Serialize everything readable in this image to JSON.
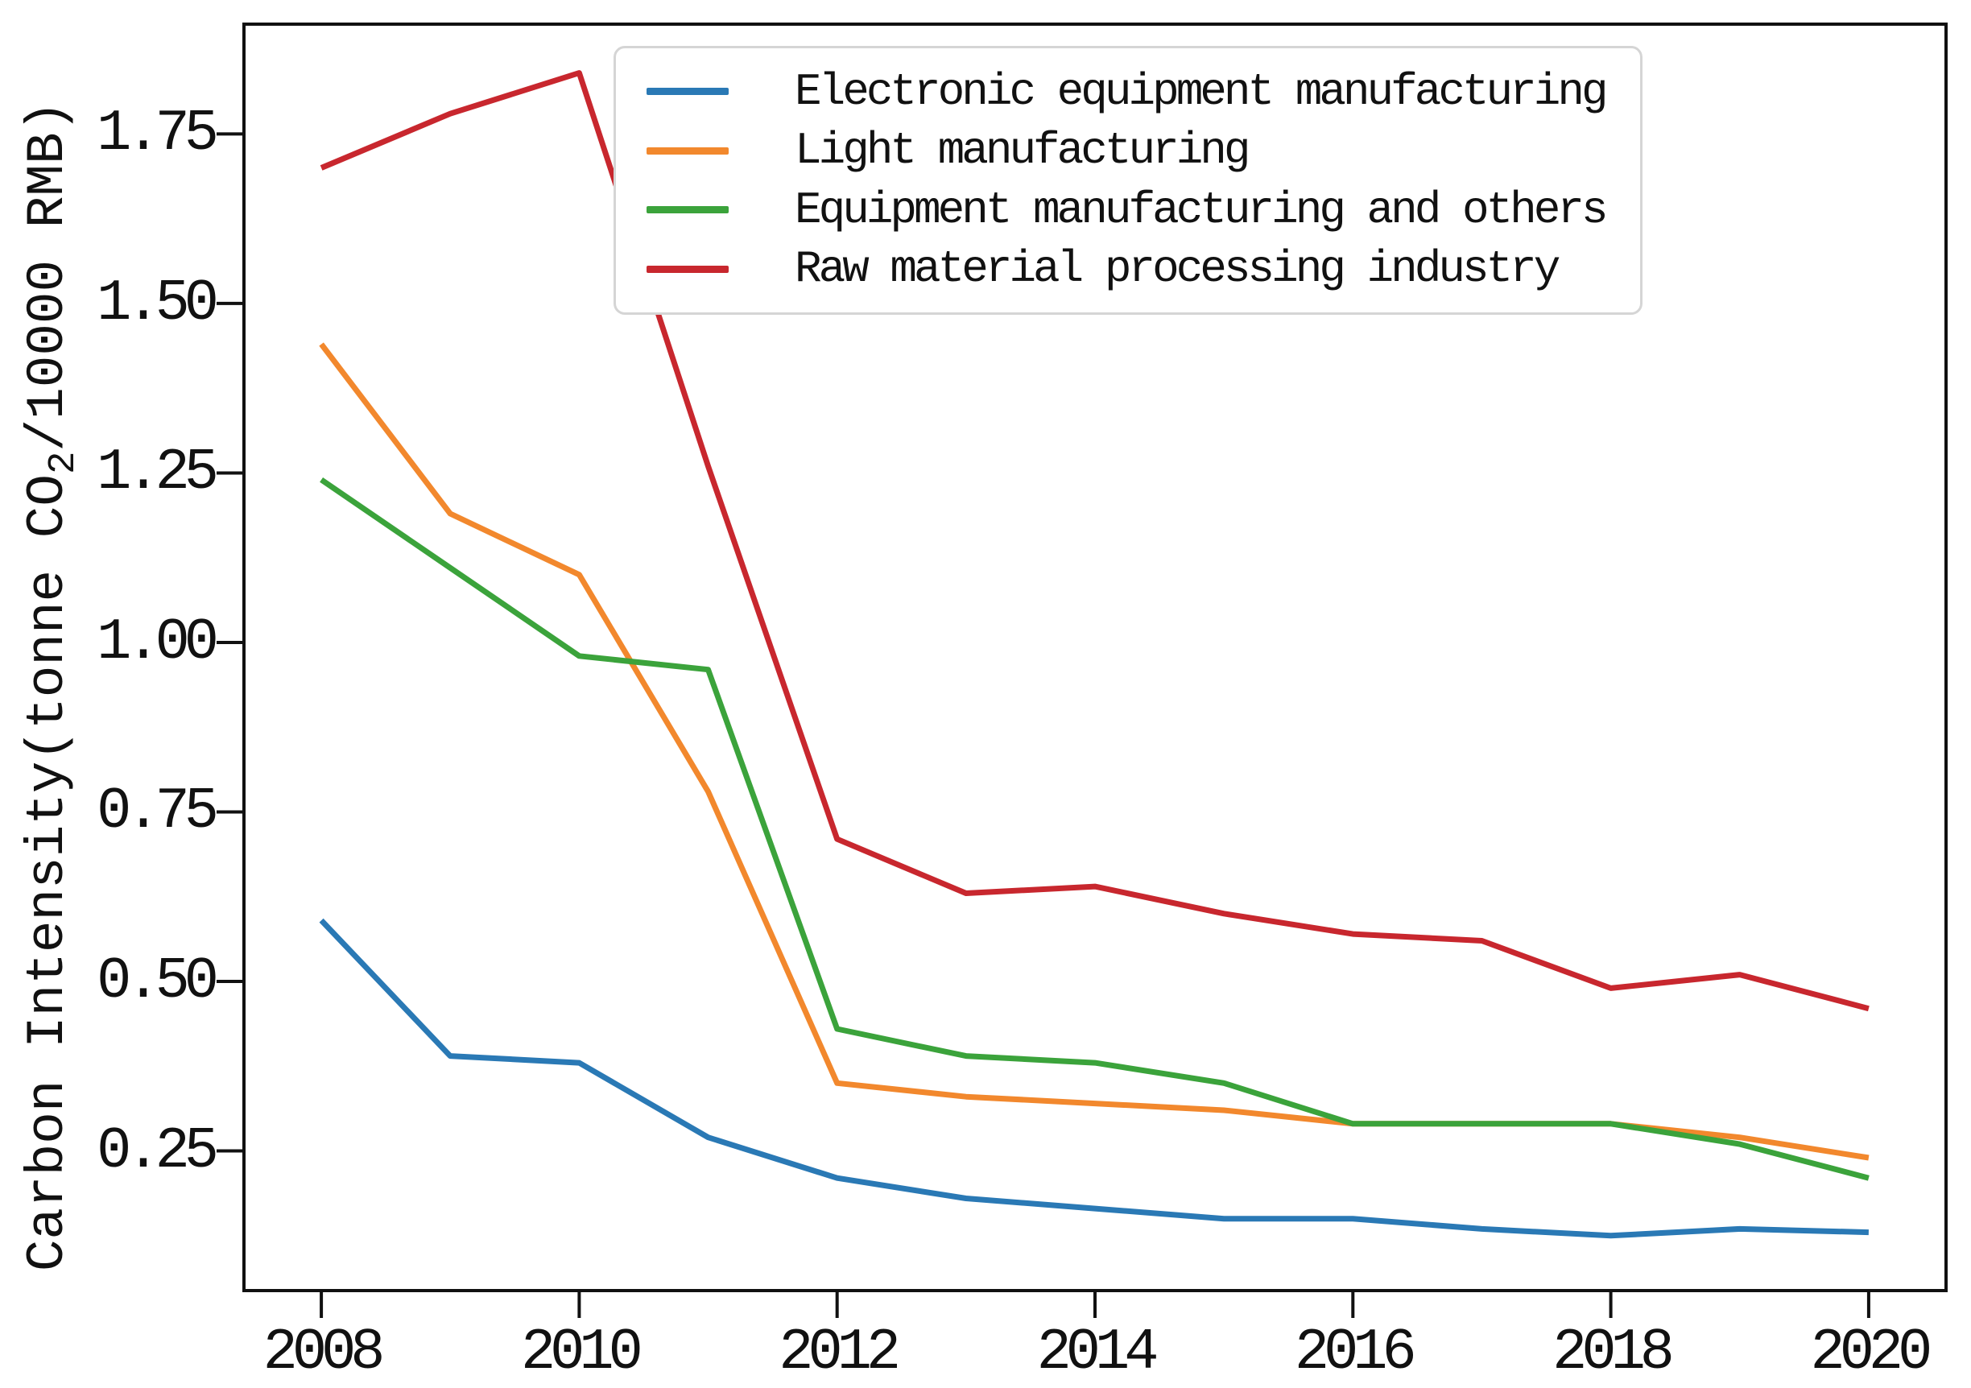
{
  "chart_data": {
    "type": "line",
    "title": "",
    "xlabel": "",
    "ylabel": "Carbon Intensity(tonne CO₂/10000 RMB)",
    "ylabel_parts": {
      "prefix": "Carbon Intensity(tonne CO",
      "subscript": "2",
      "suffix": "/10000 RMB)"
    },
    "x": [
      2008,
      2009,
      2010,
      2011,
      2012,
      2013,
      2014,
      2015,
      2016,
      2017,
      2018,
      2019,
      2020
    ],
    "x_tick_labels": [
      "2008",
      "2010",
      "2012",
      "2014",
      "2016",
      "2018",
      "2020"
    ],
    "y_tick_labels": [
      "0.25",
      "0.50",
      "0.75",
      "1.00",
      "1.25",
      "1.50",
      "1.75"
    ],
    "xlim": [
      2007.4,
      2020.6
    ],
    "ylim": [
      0.044,
      1.912
    ],
    "grid": false,
    "legend_position": "upper right",
    "axis_color": "#111111",
    "line_width": 7,
    "series": [
      {
        "name": "Electronic equipment manufacturing",
        "color": "#2a79b5",
        "values": [
          0.59,
          0.39,
          0.38,
          0.27,
          0.21,
          0.18,
          0.165,
          0.15,
          0.15,
          0.135,
          0.125,
          0.135,
          0.13
        ]
      },
      {
        "name": "Light manufacturing",
        "color": "#f2882d",
        "values": [
          1.44,
          1.19,
          1.1,
          0.78,
          0.35,
          0.33,
          0.32,
          0.31,
          0.29,
          0.29,
          0.29,
          0.27,
          0.24
        ]
      },
      {
        "name": "Equipment manufacturing and others",
        "color": "#3ba33b",
        "values": [
          1.24,
          1.11,
          0.98,
          0.96,
          0.43,
          0.39,
          0.38,
          0.35,
          0.29,
          0.29,
          0.29,
          0.26,
          0.21
        ]
      },
      {
        "name": "Raw material processing industry",
        "color": "#c8272e",
        "values": [
          1.7,
          1.78,
          1.84,
          1.26,
          0.71,
          0.63,
          0.64,
          0.6,
          0.57,
          0.56,
          0.49,
          0.51,
          0.46
        ]
      }
    ]
  }
}
